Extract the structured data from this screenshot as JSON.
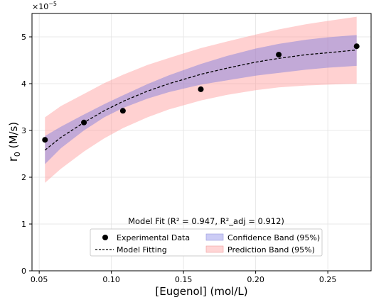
{
  "chart_data": {
    "type": "scatter",
    "xlabel": "[Eugenol] (mol/L)",
    "ylabel_main": "r",
    "ylabel_sub": "0",
    "ylabel_unit": " (M/s)",
    "y_multiplier": "×10",
    "y_multiplier_exp": "−5",
    "xlim": [
      0.045,
      0.28
    ],
    "ylim": [
      0,
      5.5
    ],
    "x_ticks": [
      0.05,
      0.1,
      0.15,
      0.2,
      0.25
    ],
    "x_tick_labels": [
      "0.05",
      "0.10",
      "0.15",
      "0.20",
      "0.25"
    ],
    "y_ticks": [
      0,
      1,
      2,
      3,
      4,
      5
    ],
    "y_tick_labels": [
      "0",
      "1",
      "2",
      "3",
      "4",
      "5"
    ],
    "grid": true,
    "annotation": "Model Fit (R² = 0.947, R²_adj = 0.912)",
    "legend_position": "lower-center",
    "experimental": {
      "name": "Experimental Data",
      "color": "#000000",
      "x": [
        0.054,
        0.081,
        0.108,
        0.162,
        0.216,
        0.27
      ],
      "y": [
        2.8,
        3.17,
        3.42,
        3.88,
        4.62,
        4.8
      ]
    },
    "fit": {
      "name": "Model Fitting",
      "color": "#000000",
      "x": [
        0.054,
        0.065,
        0.081,
        0.095,
        0.108,
        0.125,
        0.14,
        0.162,
        0.18,
        0.2,
        0.216,
        0.235,
        0.25,
        0.27
      ],
      "y": [
        2.58,
        2.85,
        3.17,
        3.42,
        3.62,
        3.84,
        4.0,
        4.2,
        4.33,
        4.46,
        4.54,
        4.62,
        4.66,
        4.72
      ]
    },
    "confidence_band": {
      "name": "Confidence Band (95%)",
      "color": "#7777dd",
      "lower": [
        2.28,
        2.62,
        3.0,
        3.28,
        3.48,
        3.68,
        3.82,
        3.98,
        4.07,
        4.17,
        4.23,
        4.3,
        4.34,
        4.38
      ],
      "upper": [
        2.88,
        3.08,
        3.34,
        3.56,
        3.75,
        3.99,
        4.18,
        4.42,
        4.59,
        4.75,
        4.85,
        4.94,
        4.99,
        5.04
      ]
    },
    "prediction_band": {
      "name": "Prediction Band (95%)",
      "color": "#ff9999",
      "lower": [
        1.88,
        2.18,
        2.55,
        2.83,
        3.05,
        3.28,
        3.45,
        3.64,
        3.76,
        3.86,
        3.92,
        3.96,
        3.98,
        4.0
      ],
      "upper": [
        3.28,
        3.52,
        3.78,
        4.01,
        4.19,
        4.4,
        4.55,
        4.76,
        4.9,
        5.05,
        5.16,
        5.27,
        5.34,
        5.43
      ]
    }
  }
}
